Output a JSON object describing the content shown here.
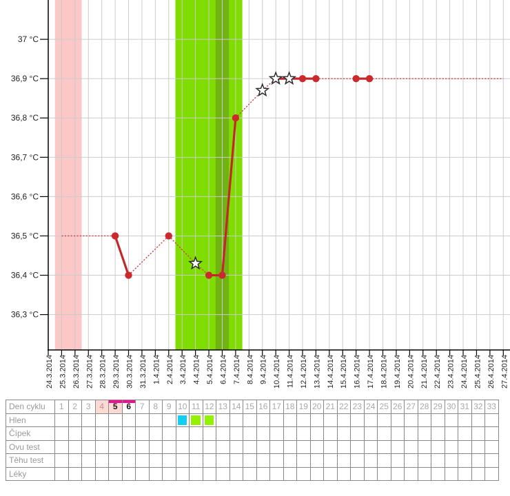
{
  "chart_data": {
    "type": "line",
    "title": "",
    "xlabel": "",
    "ylabel": "",
    "grid": true,
    "ylim": [
      36.21,
      37.1
    ],
    "y_ticks": [
      {
        "label": "37 °C",
        "value": 37.0
      },
      {
        "label": "36,9 °C",
        "value": 36.9
      },
      {
        "label": "36,8 °C",
        "value": 36.8
      },
      {
        "label": "36,7 °C",
        "value": 36.7
      },
      {
        "label": "36,6 °C",
        "value": 36.6
      },
      {
        "label": "36,5 °C",
        "value": 36.5
      },
      {
        "label": "36,4 °C",
        "value": 36.4
      },
      {
        "label": "36,3 °C",
        "value": 36.3
      }
    ],
    "x_dates": [
      "24.3.2014",
      "25.3.2014",
      "26.3.2014",
      "27.3.2014",
      "28.3.2014",
      "29.3.2014",
      "30.3.2014",
      "31.3.2014",
      "1.4.2014",
      "2.4.2014",
      "3.4.2014",
      "4.4.2014",
      "5.4.2014",
      "6.4.2014",
      "7.4.2014",
      "8.4.2014",
      "9.4.2014",
      "10.4.2014",
      "11.4.2014",
      "12.4.2014",
      "13.4.2014",
      "14.4.2014",
      "15.4.2014",
      "16.4.2014",
      "17.4.2014",
      "18.4.2014",
      "19.4.2014",
      "20.4.2014",
      "21.4.2014",
      "22.4.2014",
      "23.4.2014",
      "24.4.2014",
      "25.4.2014",
      "26.4.2014",
      "27.4.2014"
    ],
    "bands": [
      {
        "name": "menstruation",
        "from": "25.3.2014",
        "to": "26.3.2014",
        "color": "#fbc7c7"
      },
      {
        "name": "fertile-window",
        "from": "3.4.2014",
        "to": "7.4.2014",
        "color": "#80dd00"
      },
      {
        "name": "ovulation-day",
        "from": "6.4.2014",
        "to": "6.4.2014",
        "color": "#72b314"
      }
    ],
    "series": [
      {
        "name": "basal-temperature",
        "color": "#c4272b",
        "points": [
          {
            "date": "25.3.2014",
            "temp": 36.5,
            "marker": "none",
            "link": "none"
          },
          {
            "date": "29.3.2014",
            "temp": 36.5,
            "marker": "dot",
            "link": "dotted"
          },
          {
            "date": "30.3.2014",
            "temp": 36.4,
            "marker": "dot",
            "link": "solid"
          },
          {
            "date": "2.4.2014",
            "temp": 36.5,
            "marker": "dot",
            "link": "dotted"
          },
          {
            "date": "4.4.2014",
            "temp": 36.43,
            "marker": "star",
            "link": "dotted"
          },
          {
            "date": "5.4.2014",
            "temp": 36.4,
            "marker": "dot",
            "link": "dotted"
          },
          {
            "date": "6.4.2014",
            "temp": 36.4,
            "marker": "dot",
            "link": "solid"
          },
          {
            "date": "7.4.2014",
            "temp": 36.8,
            "marker": "dot",
            "link": "solid"
          },
          {
            "date": "9.4.2014",
            "temp": 36.87,
            "marker": "star",
            "link": "dotted"
          },
          {
            "date": "10.4.2014",
            "temp": 36.9,
            "marker": "star",
            "link": "dotted"
          },
          {
            "date": "11.4.2014",
            "temp": 36.9,
            "marker": "star",
            "link": "solid"
          },
          {
            "date": "12.4.2014",
            "temp": 36.9,
            "marker": "dot",
            "link": "solid"
          },
          {
            "date": "13.4.2014",
            "temp": 36.9,
            "marker": "dot",
            "link": "solid"
          },
          {
            "date": "16.4.2014",
            "temp": 36.9,
            "marker": "dot",
            "link": "dotted"
          },
          {
            "date": "17.4.2014",
            "temp": 36.9,
            "marker": "dot",
            "link": "solid"
          },
          {
            "date": "27.4.2014",
            "temp": 36.9,
            "marker": "none",
            "link": "dotted"
          }
        ]
      }
    ],
    "colors": {
      "grid": "#cbcbcb",
      "axis": "#000000",
      "tick_label": "#222222",
      "dotted_line": "#cc4343",
      "dot_fill": "#ca2a2e",
      "star_fill": "#ffffff",
      "star_stroke": "#2a2a2a"
    }
  },
  "table": {
    "row_labels": [
      "Den cyklu",
      "Hlen",
      "Čípek",
      "Ovu test",
      "Těhu test",
      "Léky"
    ],
    "days": [
      1,
      2,
      3,
      4,
      5,
      6,
      7,
      8,
      9,
      10,
      11,
      12,
      13,
      14,
      15,
      16,
      17,
      18,
      19,
      20,
      21,
      22,
      23,
      24,
      25,
      26,
      27,
      28,
      29,
      30,
      31,
      32,
      33
    ],
    "day_highlights": [
      {
        "day": 4,
        "background": "#fbd9d4",
        "top_bar": false,
        "bold": false,
        "text_color": "#cf8f8f"
      },
      {
        "day": 5,
        "background": "#fbd9d4",
        "top_bar": true,
        "bold": true,
        "text_color": "#1a1a1a"
      },
      {
        "day": 6,
        "background": "",
        "top_bar": true,
        "bold": true,
        "text_color": "#1a1a1a"
      }
    ],
    "top_bar_color": "#ee0f8e",
    "hlen_marks": [
      {
        "day": 10,
        "color": "#12cff2"
      },
      {
        "day": 11,
        "color": "#92f201"
      },
      {
        "day": 12,
        "color": "#92f201"
      }
    ],
    "border_color": "#888888",
    "label_color": "#999999",
    "day_color": "#a8a8a8"
  }
}
